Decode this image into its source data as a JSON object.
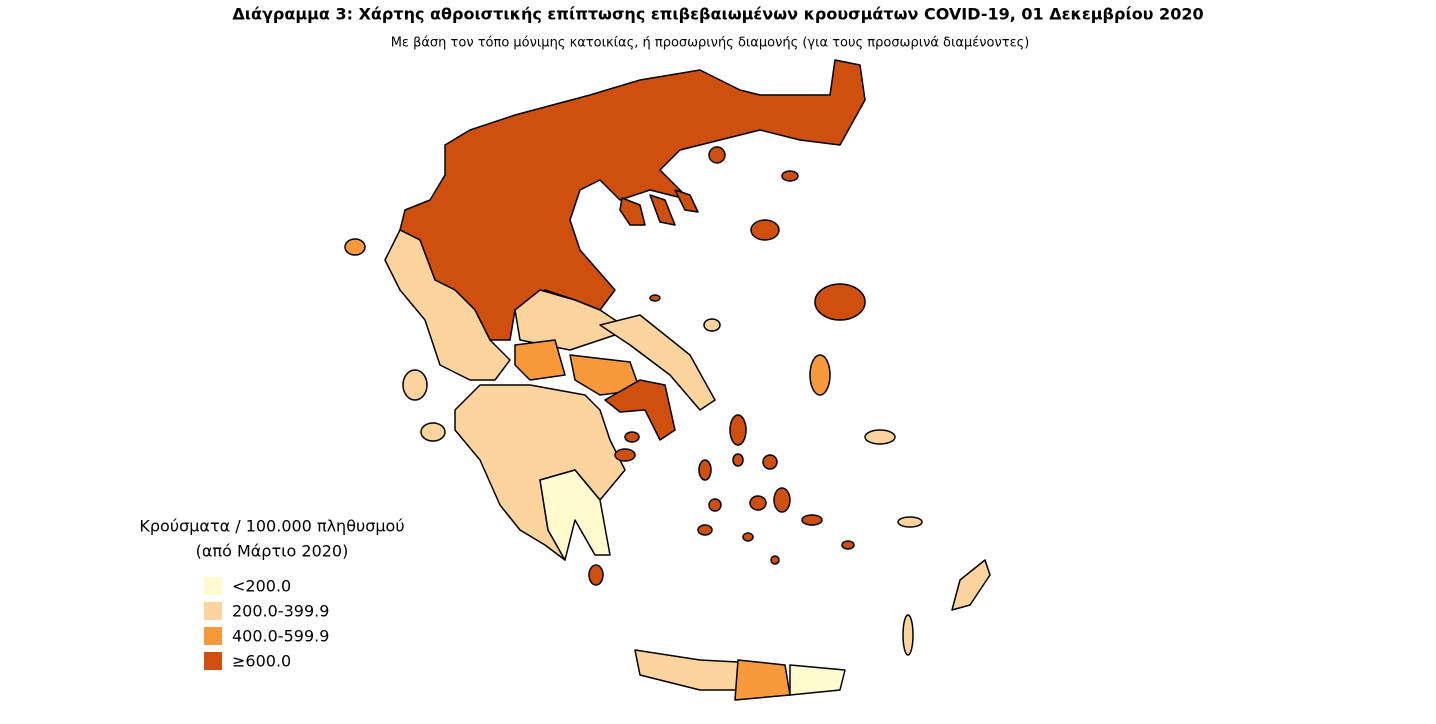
{
  "header": {
    "title": "Διάγραμμα 3: Χάρτης αθροιστικής επίπτωσης επιβεβαιωμένων κρουσμάτων COVID-19, 01 Δεκεμβρίου 2020",
    "subtitle": "Με βάση τον τόπο μόνιμης κατοικίας, ή προσωρινής διαμονής (για τους προσωρινά διαμένοντες)"
  },
  "legend": {
    "title": [
      "Κρούσματα / 100.000 πληθυσμού",
      "(από Μάρτιο 2020)"
    ],
    "items": [
      {
        "label": "<200.0",
        "color": "#fefccf"
      },
      {
        "label": "200.0-399.9",
        "color": "#fdd49e"
      },
      {
        "label": "400.0-599.9",
        "color": "#f89a3c"
      },
      {
        "label": "≥600.0",
        "color": "#cf4f0f"
      }
    ]
  }
}
